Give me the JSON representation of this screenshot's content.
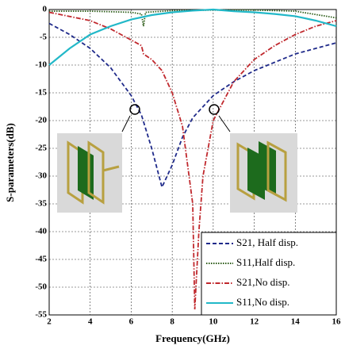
{
  "chart_data": {
    "type": "line",
    "xlabel": "Frequency(GHz)",
    "ylabel": "S-parameters(dB)",
    "xlim": [
      2,
      16
    ],
    "ylim": [
      -55,
      0
    ],
    "xticks": [
      2,
      4,
      6,
      8,
      10,
      12,
      14,
      16
    ],
    "yticks": [
      0,
      -5,
      -10,
      -15,
      -20,
      -25,
      -30,
      -35,
      -40,
      -45,
      -50,
      -55
    ],
    "grid": true,
    "legend": "lower right",
    "series": [
      {
        "name": "S21, Half disp.",
        "color": "#1f2a8a",
        "dash": "dashed",
        "x": [
          2,
          3,
          4,
          5,
          6,
          6.5,
          7,
          7.5,
          8,
          8.5,
          9,
          10,
          11,
          12,
          13,
          14,
          15,
          16
        ],
        "values": [
          -2.5,
          -4.5,
          -7,
          -10.5,
          -15.5,
          -19,
          -25,
          -32,
          -28,
          -23,
          -19.5,
          -15.5,
          -13,
          -11,
          -9.5,
          -8,
          -7,
          -6
        ]
      },
      {
        "name": "S11,Half disp.",
        "color": "#2e5d1a",
        "dash": "dotted",
        "x": [
          2,
          4,
          6,
          6.5,
          6.6,
          6.7,
          8,
          10,
          12,
          14,
          16
        ],
        "values": [
          -0.3,
          -0.3,
          -0.5,
          -0.8,
          -3,
          -0.5,
          -0.2,
          -0.1,
          -0.1,
          -0.3,
          -1.5
        ]
      },
      {
        "name": "S21,No disp.",
        "color": "#c0282d",
        "dash": "dashdot",
        "x": [
          2,
          4,
          5,
          6,
          6.5,
          6.6,
          7,
          7.5,
          8,
          8.5,
          9,
          9.1,
          9.3,
          9.5,
          10,
          11,
          12,
          13,
          14,
          15,
          16
        ],
        "values": [
          -0.5,
          -2,
          -3.5,
          -5.5,
          -6.5,
          -8,
          -9,
          -11,
          -15,
          -21,
          -35,
          -54,
          -40,
          -30,
          -20,
          -13,
          -9,
          -6.5,
          -4.5,
          -3,
          -2
        ]
      },
      {
        "name": "S11,No disp.",
        "color": "#22b8c8",
        "dash": "solid",
        "x": [
          2,
          3,
          4,
          5,
          6,
          7,
          8,
          9,
          10,
          11,
          12,
          13,
          14,
          15,
          16
        ],
        "values": [
          -10,
          -7,
          -4.5,
          -3,
          -1.8,
          -1,
          -0.5,
          -0.2,
          0,
          -0.3,
          -0.5,
          -0.8,
          -1.2,
          -2,
          -3
        ]
      }
    ]
  }
}
